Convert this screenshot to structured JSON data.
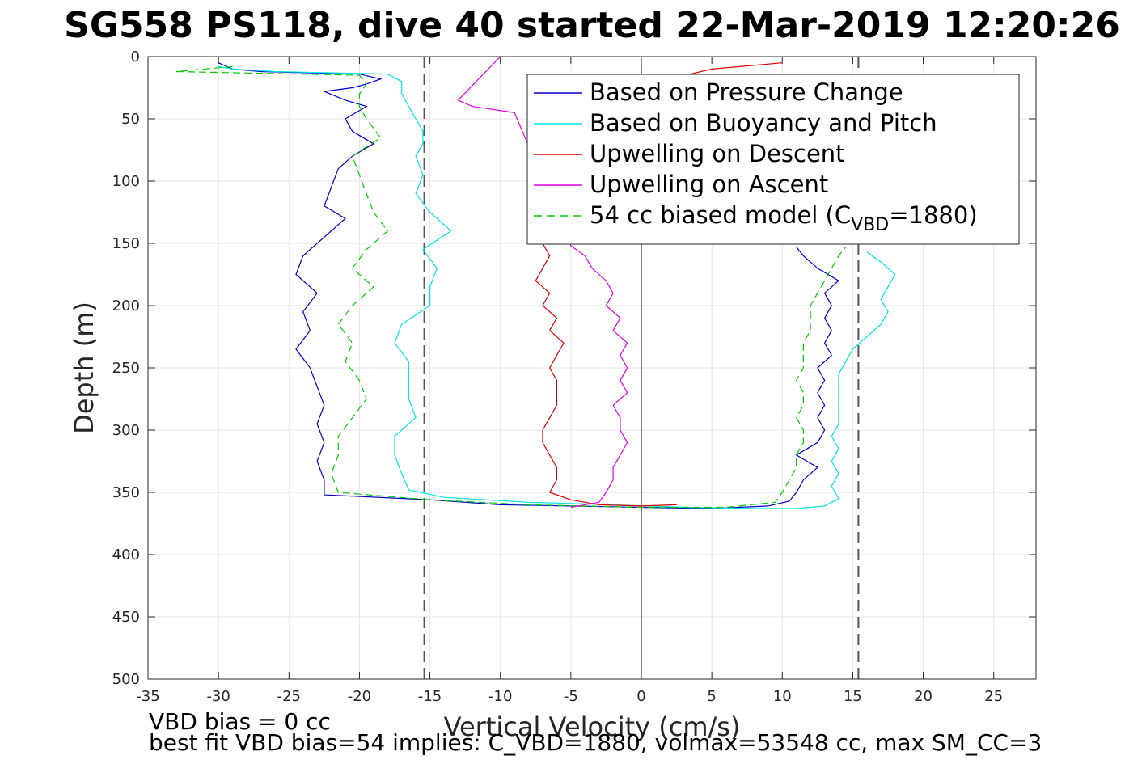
{
  "chart_data": {
    "type": "line",
    "title": "SG558 PS118, dive 40 started 22-Mar-2019 12:20:26",
    "xlabel": "Vertical Velocity (cm/s)",
    "ylabel": "Depth (m)",
    "xlim": [
      -35,
      28
    ],
    "ylim": [
      0,
      500
    ],
    "y_reversed": true,
    "grid": true,
    "xticks": [
      -35,
      -30,
      -25,
      -20,
      -15,
      -10,
      -5,
      0,
      5,
      10,
      15,
      20,
      25
    ],
    "yticks": [
      0,
      50,
      100,
      150,
      200,
      250,
      300,
      350,
      400,
      450,
      500
    ],
    "legend_position": "top-right",
    "legend": [
      {
        "label": "Based on Pressure Change",
        "color": "#0000cc",
        "style": "solid"
      },
      {
        "label": "Based on Buoyancy and Pitch",
        "color": "#00e5e5",
        "style": "solid"
      },
      {
        "label": "Upwelling on Descent",
        "color": "#e00000",
        "style": "solid"
      },
      {
        "label": "Upwelling on Ascent",
        "color": "#e000e0",
        "style": "solid"
      },
      {
        "label_prefix": "54 cc biased model (C",
        "label_sub": "VBD",
        "label_suffix": "=1880)",
        "color": "#00cc00",
        "style": "dashed"
      }
    ],
    "reference_lines": {
      "zero_x": 0,
      "dashed_x": [
        -15.4,
        15.4
      ],
      "color": "#555555"
    },
    "series": [
      {
        "name": "Based on Pressure Change",
        "color": "#0000cc",
        "style": "solid",
        "points": [
          [
            -30,
            5
          ],
          [
            -29,
            10
          ],
          [
            -27,
            12
          ],
          [
            -20,
            14
          ],
          [
            -18.5,
            18
          ],
          [
            -19.5,
            22
          ],
          [
            -20.5,
            25
          ],
          [
            -22.5,
            28
          ],
          [
            -21,
            35
          ],
          [
            -19.5,
            40
          ],
          [
            -21,
            50
          ],
          [
            -20.5,
            60
          ],
          [
            -19,
            70
          ],
          [
            -20.5,
            80
          ],
          [
            -21.5,
            90
          ],
          [
            -22,
            105
          ],
          [
            -22.5,
            120
          ],
          [
            -21,
            130
          ],
          [
            -22.5,
            145
          ],
          [
            -24,
            160
          ],
          [
            -24.5,
            175
          ],
          [
            -23,
            190
          ],
          [
            -24,
            205
          ],
          [
            -23.5,
            220
          ],
          [
            -24.5,
            235
          ],
          [
            -23.5,
            250
          ],
          [
            -23,
            265
          ],
          [
            -22.5,
            280
          ],
          [
            -23,
            295
          ],
          [
            -22.5,
            310
          ],
          [
            -23,
            325
          ],
          [
            -22.5,
            340
          ],
          [
            -22.5,
            352
          ],
          [
            -15,
            356
          ],
          [
            -10,
            360
          ],
          [
            -5,
            361
          ],
          [
            0,
            362
          ],
          [
            5,
            363
          ],
          [
            9,
            361
          ],
          [
            10.5,
            357
          ],
          [
            11,
            350
          ],
          [
            11.5,
            340
          ],
          [
            12.5,
            330
          ],
          [
            11,
            320
          ],
          [
            12.5,
            310
          ],
          [
            13,
            300
          ],
          [
            12.5,
            290
          ],
          [
            13,
            280
          ],
          [
            12.5,
            270
          ],
          [
            13,
            260
          ],
          [
            12.5,
            250
          ],
          [
            13.5,
            240
          ],
          [
            13,
            230
          ],
          [
            13.5,
            220
          ],
          [
            13,
            210
          ],
          [
            13.5,
            200
          ],
          [
            13,
            190
          ],
          [
            14,
            180
          ],
          [
            12.5,
            170
          ],
          [
            11.5,
            160
          ],
          [
            11,
            153
          ]
        ]
      },
      {
        "name": "Based on Buoyancy and Pitch",
        "color": "#00e5e5",
        "style": "solid",
        "points": [
          [
            -30,
            8
          ],
          [
            -29,
            10
          ],
          [
            -26,
            12
          ],
          [
            -18,
            14
          ],
          [
            -17,
            20
          ],
          [
            -17,
            30
          ],
          [
            -16.5,
            40
          ],
          [
            -16,
            50
          ],
          [
            -15.5,
            60
          ],
          [
            -15.5,
            70
          ],
          [
            -16,
            80
          ],
          [
            -15.5,
            95
          ],
          [
            -16,
            110
          ],
          [
            -15,
            125
          ],
          [
            -13.5,
            140
          ],
          [
            -15.5,
            155
          ],
          [
            -14.5,
            170
          ],
          [
            -15,
            185
          ],
          [
            -15,
            200
          ],
          [
            -17,
            215
          ],
          [
            -17.5,
            230
          ],
          [
            -16.5,
            245
          ],
          [
            -16.5,
            260
          ],
          [
            -16.5,
            275
          ],
          [
            -16,
            290
          ],
          [
            -17.5,
            305
          ],
          [
            -17.5,
            320
          ],
          [
            -17,
            335
          ],
          [
            -16.5,
            348
          ],
          [
            -14,
            354
          ],
          [
            -8,
            358
          ],
          [
            -2,
            360
          ],
          [
            3,
            362
          ],
          [
            8,
            363
          ],
          [
            11,
            363
          ],
          [
            13,
            361
          ],
          [
            14,
            355
          ],
          [
            13.5,
            345
          ],
          [
            14,
            335
          ],
          [
            13.5,
            325
          ],
          [
            14,
            315
          ],
          [
            13.5,
            305
          ],
          [
            14,
            295
          ],
          [
            14,
            285
          ],
          [
            14,
            275
          ],
          [
            14,
            265
          ],
          [
            14,
            255
          ],
          [
            14.5,
            245
          ],
          [
            15,
            235
          ],
          [
            16,
            225
          ],
          [
            17,
            215
          ],
          [
            17.5,
            205
          ],
          [
            17,
            195
          ],
          [
            17.5,
            185
          ],
          [
            18,
            175
          ],
          [
            17,
            165
          ],
          [
            16,
            157
          ]
        ]
      },
      {
        "name": "Upwelling on Descent",
        "color": "#e00000",
        "style": "solid",
        "points": [
          [
            10,
            5
          ],
          [
            5,
            10
          ],
          [
            2,
            18
          ],
          [
            -1,
            25
          ],
          [
            -3,
            30
          ],
          [
            -5,
            35
          ],
          [
            -7,
            150
          ],
          [
            -6.5,
            160
          ],
          [
            -7,
            170
          ],
          [
            -7.5,
            180
          ],
          [
            -6.5,
            190
          ],
          [
            -7,
            200
          ],
          [
            -6,
            210
          ],
          [
            -6.5,
            220
          ],
          [
            -5.5,
            230
          ],
          [
            -6,
            240
          ],
          [
            -6.5,
            250
          ],
          [
            -6,
            260
          ],
          [
            -6,
            270
          ],
          [
            -6,
            280
          ],
          [
            -6.5,
            290
          ],
          [
            -7,
            300
          ],
          [
            -7,
            310
          ],
          [
            -6.5,
            320
          ],
          [
            -6,
            330
          ],
          [
            -6,
            340
          ],
          [
            -6.5,
            350
          ],
          [
            -5,
            356
          ],
          [
            -3,
            360
          ],
          [
            0,
            361
          ],
          [
            2.5,
            360
          ]
        ]
      },
      {
        "name": "Upwelling on Ascent",
        "color": "#e000e0",
        "style": "solid",
        "points": [
          [
            -10,
            0
          ],
          [
            -13,
            35
          ],
          [
            -12,
            40
          ],
          [
            -9,
            45
          ],
          [
            -5,
            152
          ],
          [
            -4,
            160
          ],
          [
            -3.5,
            170
          ],
          [
            -2.5,
            180
          ],
          [
            -2,
            190
          ],
          [
            -2.5,
            200
          ],
          [
            -1.5,
            210
          ],
          [
            -2,
            220
          ],
          [
            -1,
            230
          ],
          [
            -1.5,
            240
          ],
          [
            -1,
            250
          ],
          [
            -1.5,
            260
          ],
          [
            -1,
            270
          ],
          [
            -2,
            280
          ],
          [
            -1.5,
            290
          ],
          [
            -1.5,
            300
          ],
          [
            -1,
            310
          ],
          [
            -1.5,
            320
          ],
          [
            -2,
            330
          ],
          [
            -2,
            340
          ],
          [
            -2.5,
            350
          ],
          [
            -3,
            358
          ],
          [
            -5,
            362
          ]
        ]
      },
      {
        "name": "54 cc biased model (CVBD=1880)",
        "color": "#00cc00",
        "style": "dashed",
        "points": [
          [
            -29,
            8
          ],
          [
            -33,
            12
          ],
          [
            -20,
            15
          ],
          [
            -19.5,
            22
          ],
          [
            -20,
            30
          ],
          [
            -20,
            40
          ],
          [
            -19.5,
            50
          ],
          [
            -18.5,
            65
          ],
          [
            -20.5,
            80
          ],
          [
            -20,
            95
          ],
          [
            -19.5,
            110
          ],
          [
            -19,
            125
          ],
          [
            -18,
            140
          ],
          [
            -19.5,
            155
          ],
          [
            -20.5,
            170
          ],
          [
            -19,
            185
          ],
          [
            -20.5,
            200
          ],
          [
            -21.5,
            215
          ],
          [
            -20.5,
            230
          ],
          [
            -21,
            245
          ],
          [
            -20,
            260
          ],
          [
            -19.5,
            275
          ],
          [
            -20.5,
            290
          ],
          [
            -21.5,
            305
          ],
          [
            -21.5,
            320
          ],
          [
            -22,
            335
          ],
          [
            -21.5,
            350
          ],
          [
            -15,
            356
          ],
          [
            -8,
            360
          ],
          [
            0,
            362
          ],
          [
            6,
            362
          ],
          [
            9.5,
            358
          ],
          [
            10,
            350
          ],
          [
            10.5,
            340
          ],
          [
            11,
            330
          ],
          [
            11,
            320
          ],
          [
            11.5,
            310
          ],
          [
            11.5,
            300
          ],
          [
            11,
            290
          ],
          [
            11.5,
            280
          ],
          [
            11.5,
            270
          ],
          [
            11,
            260
          ],
          [
            11.5,
            250
          ],
          [
            11.5,
            240
          ],
          [
            11.5,
            230
          ],
          [
            12,
            220
          ],
          [
            12,
            210
          ],
          [
            12,
            200
          ],
          [
            12.5,
            190
          ],
          [
            13,
            180
          ],
          [
            13.5,
            170
          ],
          [
            14,
            160
          ],
          [
            14.5,
            153
          ]
        ]
      }
    ]
  },
  "notes": {
    "bias_line": "VBD bias = 0 cc",
    "fit_line": "best fit VBD bias=54 implies: C_VBD=1880, volmax=53548 cc, max SM_CC=3"
  }
}
